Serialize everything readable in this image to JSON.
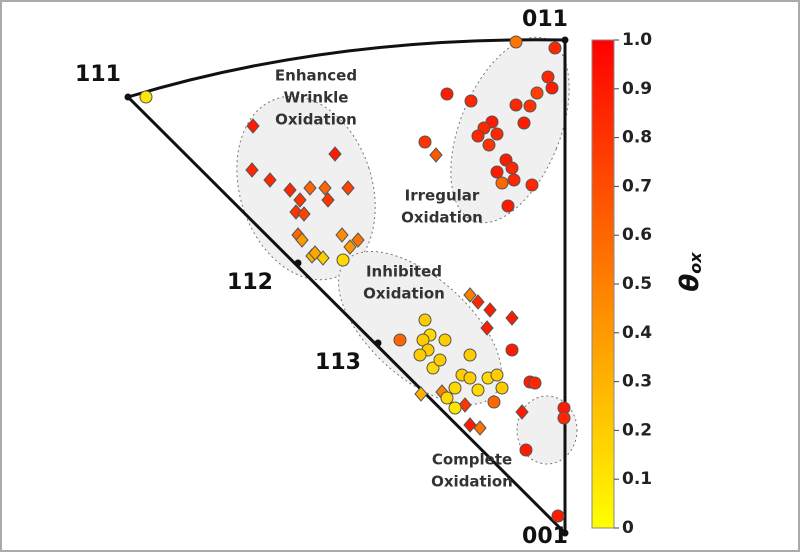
{
  "chart_data": {
    "type": "scatter",
    "xlim": [
      0,
      437
    ],
    "ylim": [
      0,
      493
    ],
    "clim": [
      0,
      1
    ],
    "colormap": [
      "#ffff00",
      "#ff0000"
    ],
    "edge_color": "#555555",
    "vertices": [
      {
        "label": "111",
        "x": 0,
        "y": 436
      },
      {
        "label": "011",
        "x": 437,
        "y": 493
      },
      {
        "label": "112",
        "x": 170,
        "y": 270
      },
      {
        "label": "113",
        "x": 250,
        "y": 190
      },
      {
        "label": "001",
        "x": 437,
        "y": 0
      }
    ],
    "regions": [
      {
        "lines": [
          "Enhanced",
          "Wrinkle",
          "Oxidation"
        ]
      },
      {
        "lines": [
          "Irregular",
          "Oxidation"
        ]
      },
      {
        "lines": [
          "Inhibited",
          "Oxidation"
        ]
      },
      {
        "lines": [
          "Complete",
          "Oxidation"
        ]
      }
    ],
    "series": [
      {
        "marker": "diamond",
        "x": [
          125,
          207,
          124,
          142,
          162,
          182,
          197,
          220,
          200,
          172,
          168,
          176,
          170,
          174,
          214,
          230,
          222,
          184,
          195,
          187,
          308,
          342,
          350,
          362,
          384,
          359,
          293,
          314,
          337,
          352,
          342,
          394
        ],
        "y": [
          407,
          379,
          363,
          353,
          343,
          345,
          345,
          345,
          333,
          333,
          321,
          319,
          298,
          293,
          298,
          293,
          286,
          277,
          275,
          280,
          378,
          238,
          231,
          223,
          215,
          205,
          139,
          141,
          128,
          105,
          108,
          121
        ],
        "values": [
          0.9,
          0.9,
          0.85,
          0.85,
          0.85,
          0.6,
          0.6,
          0.75,
          0.8,
          0.8,
          0.8,
          0.75,
          0.6,
          0.4,
          0.45,
          0.55,
          0.4,
          0.3,
          0.2,
          0.35,
          0.65,
          0.5,
          0.85,
          0.9,
          0.9,
          0.9,
          0.3,
          0.5,
          0.8,
          0.55,
          0.9,
          0.9
        ]
      },
      {
        "marker": "circle",
        "x": [
          18,
          388,
          427,
          420,
          424,
          409,
          319,
          343,
          388,
          402,
          364,
          396,
          356,
          350,
          369,
          297,
          361,
          378,
          384,
          369,
          386,
          374,
          404,
          380,
          215,
          272,
          297,
          302,
          295,
          300,
          317,
          292,
          342,
          305,
          312,
          334,
          342,
          360,
          369,
          350,
          374,
          327,
          319,
          327,
          384,
          402,
          407,
          366,
          436,
          436,
          398,
          430
        ],
        "y": [
          436,
          491,
          485,
          456,
          445,
          440,
          439,
          432,
          428,
          427,
          411,
          410,
          405,
          397,
          399,
          391,
          388,
          373,
          365,
          361,
          353,
          350,
          348,
          327,
          273,
          193,
          213,
          198,
          193,
          183,
          193,
          178,
          178,
          165,
          173,
          158,
          155,
          155,
          158,
          143,
          145,
          145,
          135,
          125,
          183,
          151,
          150,
          131,
          125,
          115,
          83,
          17
        ],
        "values": [
          0.1,
          0.55,
          0.85,
          0.85,
          0.9,
          0.75,
          0.9,
          0.85,
          0.85,
          0.8,
          0.9,
          0.9,
          0.85,
          0.85,
          0.85,
          0.8,
          0.8,
          0.9,
          0.85,
          0.9,
          0.85,
          0.6,
          0.85,
          0.9,
          0.15,
          0.6,
          0.2,
          0.15,
          0.2,
          0.2,
          0.2,
          0.2,
          0.2,
          0.15,
          0.2,
          0.2,
          0.2,
          0.15,
          0.2,
          0.15,
          0.2,
          0.15,
          0.15,
          0.1,
          0.9,
          0.9,
          0.85,
          0.6,
          0.9,
          0.85,
          0.9,
          0.9
        ]
      }
    ],
    "colorbar": {
      "label": {
        "symbol": "θ",
        "subscript": "ox"
      },
      "ticks": [
        0,
        0.1,
        0.2,
        0.3,
        0.4,
        0.5,
        0.6,
        0.7,
        0.8,
        0.9,
        {
          "value": 1,
          "label": "1.0"
        }
      ]
    }
  }
}
